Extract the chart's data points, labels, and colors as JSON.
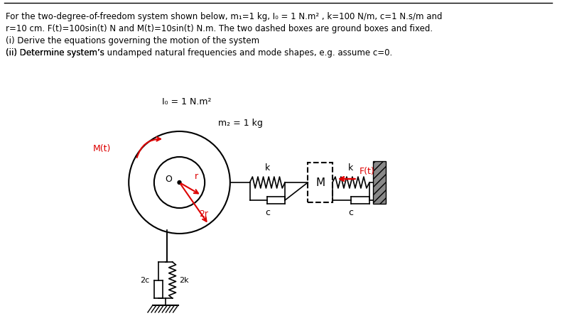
{
  "text_lines": [
    "For the two-degree-of-freedom system shown below, m₁=1 kg, I₀ = 1 N.m² , k=100 N/m, c=1 N.s/m and",
    "r=10 cm. F(t)=100sin(t) N and M(t)=10sin(t) N.m. The two dashed boxes are ground boxes and fixed.",
    "(i) Derive the equations governing the motion of the system",
    "(ii) Determine system’s undamped natural frequencies and mode shapes, e.g. assume c=0."
  ],
  "bg_color": "#ffffff",
  "text_color": "#000000",
  "red_color": "#dd0000",
  "diagram_labels": {
    "Io": "I₀ = 1 N.m²",
    "m2": "m₂ = 1 kg",
    "Mt": "M(t)",
    "Ft": "F(t)",
    "k1": "k",
    "k2": "k",
    "c1": "c",
    "c2": "c",
    "c3": "2c",
    "k3": "2k",
    "M": "M",
    "O": "O",
    "r": "r",
    "2r": "2r"
  }
}
